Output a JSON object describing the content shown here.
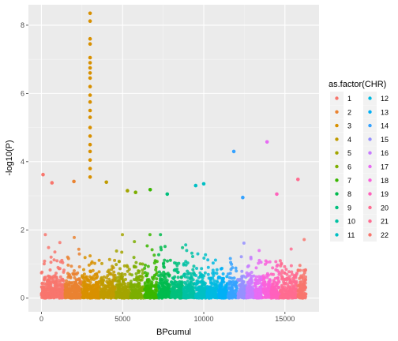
{
  "chart_data": {
    "type": "scatter",
    "title": "",
    "xlabel": "BPcumul",
    "ylabel": "-log10(P)",
    "xlim": [
      -800,
      17100
    ],
    "ylim": [
      -0.4,
      8.6
    ],
    "x_ticks": [
      0,
      5000,
      10000,
      15000
    ],
    "x_tick_labels": [
      "0",
      "5000",
      "10000",
      "15000"
    ],
    "y_ticks": [
      0,
      2,
      4,
      6,
      8
    ],
    "y_tick_labels": [
      "0",
      "2",
      "4",
      "6",
      "8"
    ],
    "grid": true,
    "legend": {
      "title": "as.factor(CHR)",
      "placement": "right",
      "columns": 2
    },
    "series": [
      {
        "name": "1",
        "color": "#F8766D",
        "x_range": [
          0,
          1400
        ]
      },
      {
        "name": "2",
        "color": "#EA8331",
        "x_range": [
          1450,
          2450
        ]
      },
      {
        "name": "3",
        "color": "#D89000",
        "x_range": [
          2500,
          3600
        ]
      },
      {
        "name": "4",
        "color": "#C09B00",
        "x_range": [
          3650,
          4550
        ]
      },
      {
        "name": "5",
        "color": "#A3A500",
        "x_range": [
          4600,
          5450
        ]
      },
      {
        "name": "6",
        "color": "#7CAE00",
        "x_range": [
          5500,
          6300
        ]
      },
      {
        "name": "7",
        "color": "#39B600",
        "x_range": [
          6350,
          7150
        ]
      },
      {
        "name": "8",
        "color": "#00BB4E",
        "x_range": [
          7200,
          7950
        ]
      },
      {
        "name": "9",
        "color": "#00BF7D",
        "x_range": [
          8000,
          8700
        ]
      },
      {
        "name": "10",
        "color": "#00C1A3",
        "x_range": [
          8750,
          9450
        ]
      },
      {
        "name": "11",
        "color": "#00BFC4",
        "x_range": [
          9500,
          10150
        ]
      },
      {
        "name": "12",
        "color": "#00BAE0",
        "x_range": [
          10200,
          10850
        ]
      },
      {
        "name": "13",
        "color": "#00B0F6",
        "x_range": [
          10900,
          11450
        ]
      },
      {
        "name": "14",
        "color": "#35A2FF",
        "x_range": [
          11500,
          12050
        ]
      },
      {
        "name": "15",
        "color": "#9590FF",
        "x_range": [
          12100,
          12600
        ]
      },
      {
        "name": "16",
        "color": "#C77CFF",
        "x_range": [
          12650,
          13100
        ]
      },
      {
        "name": "17",
        "color": "#E76BF3",
        "x_range": [
          13150,
          13600
        ]
      },
      {
        "name": "18",
        "color": "#FA62DB",
        "x_range": [
          13650,
          14100
        ]
      },
      {
        "name": "19",
        "color": "#FF62BC",
        "x_range": [
          14150,
          14650
        ]
      },
      {
        "name": "20",
        "color": "#FF6C91",
        "x_range": [
          14700,
          15200
        ]
      },
      {
        "name": "21",
        "color": "#FF6C91",
        "x_range": [
          15250,
          15750
        ]
      },
      {
        "name": "22",
        "color": "#F8766D",
        "x_range": [
          15800,
          16300
        ]
      }
    ],
    "notable_points": [
      {
        "series": "1",
        "x": 100,
        "y": 3.62
      },
      {
        "series": "1",
        "x": 650,
        "y": 3.38
      },
      {
        "series": "2",
        "x": 2000,
        "y": 3.42
      },
      {
        "series": "3",
        "x": 3000,
        "y": 8.35
      },
      {
        "series": "3",
        "x": 3000,
        "y": 8.12
      },
      {
        "series": "3",
        "x": 3000,
        "y": 7.6
      },
      {
        "series": "3",
        "x": 3000,
        "y": 7.45
      },
      {
        "series": "3",
        "x": 3000,
        "y": 7.05
      },
      {
        "series": "3",
        "x": 3000,
        "y": 6.9
      },
      {
        "series": "3",
        "x": 3000,
        "y": 6.75
      },
      {
        "series": "3",
        "x": 3000,
        "y": 6.6
      },
      {
        "series": "3",
        "x": 3000,
        "y": 6.45
      },
      {
        "series": "3",
        "x": 3000,
        "y": 6.2
      },
      {
        "series": "3",
        "x": 3000,
        "y": 5.95
      },
      {
        "series": "3",
        "x": 3000,
        "y": 5.75
      },
      {
        "series": "3",
        "x": 3000,
        "y": 5.5
      },
      {
        "series": "3",
        "x": 3000,
        "y": 5.3
      },
      {
        "series": "3",
        "x": 3000,
        "y": 5.0
      },
      {
        "series": "3",
        "x": 3000,
        "y": 4.75
      },
      {
        "series": "3",
        "x": 3000,
        "y": 4.5
      },
      {
        "series": "3",
        "x": 3000,
        "y": 4.3
      },
      {
        "series": "3",
        "x": 3000,
        "y": 4.05
      },
      {
        "series": "3",
        "x": 3000,
        "y": 3.8
      },
      {
        "series": "3",
        "x": 3000,
        "y": 3.55
      },
      {
        "series": "4",
        "x": 4000,
        "y": 3.4
      },
      {
        "series": "5",
        "x": 5300,
        "y": 3.15
      },
      {
        "series": "6",
        "x": 5800,
        "y": 3.1
      },
      {
        "series": "7",
        "x": 6700,
        "y": 3.18
      },
      {
        "series": "9",
        "x": 7750,
        "y": 3.05
      },
      {
        "series": "11",
        "x": 9500,
        "y": 3.3
      },
      {
        "series": "11",
        "x": 10000,
        "y": 3.35
      },
      {
        "series": "14",
        "x": 11850,
        "y": 4.3
      },
      {
        "series": "14",
        "x": 12400,
        "y": 2.95
      },
      {
        "series": "17",
        "x": 13900,
        "y": 4.58
      },
      {
        "series": "19",
        "x": 14500,
        "y": 3.05
      },
      {
        "series": "21",
        "x": 15800,
        "y": 3.48
      }
    ]
  }
}
